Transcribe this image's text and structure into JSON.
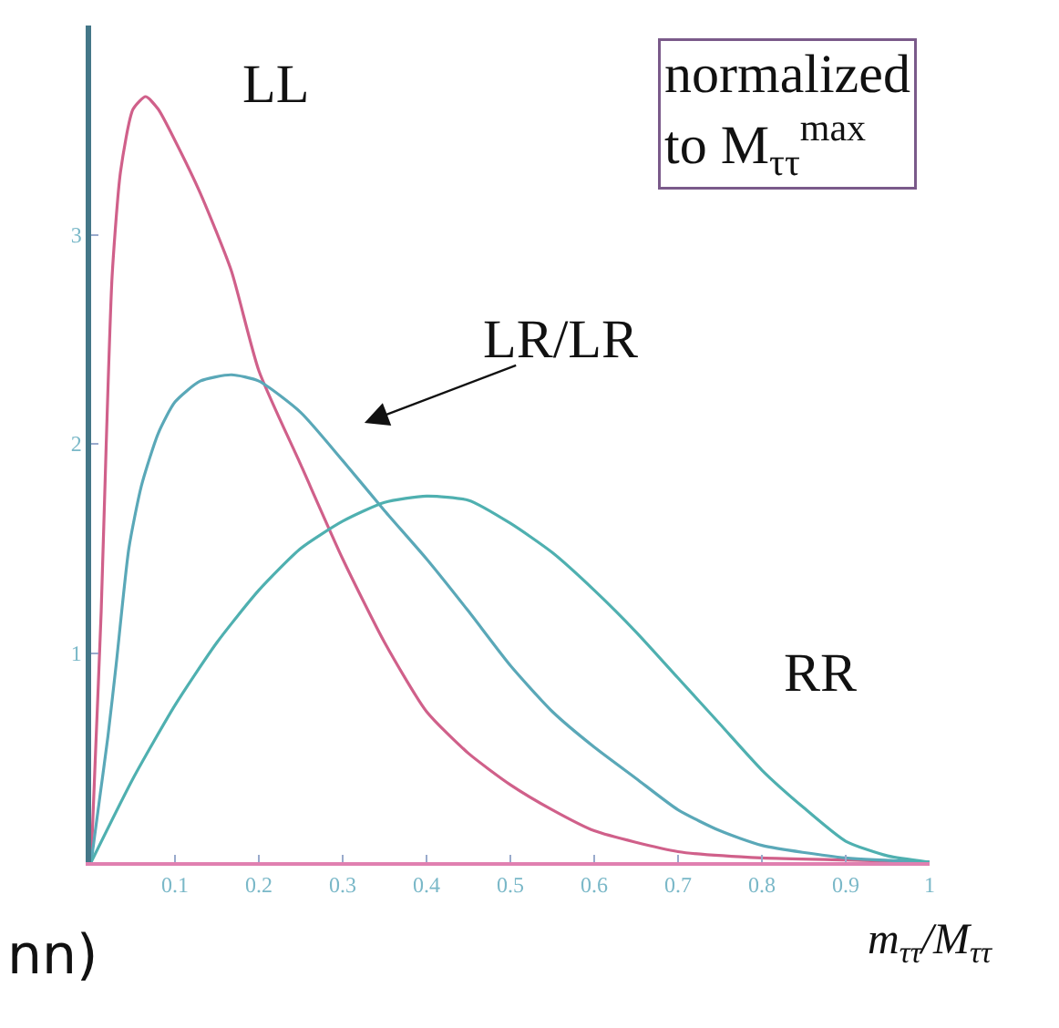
{
  "chart_data": {
    "type": "line",
    "xlabel": "m$_{ττ}$/M$_{ττ}$",
    "annotations": [
      "normalized to M$_{ττ}$$^{max}$",
      "nn)"
    ],
    "xlim": [
      0,
      1
    ],
    "ylim": [
      0,
      4
    ],
    "xticks": [
      0.1,
      0.2,
      0.3,
      0.4,
      0.5,
      0.6,
      0.7,
      0.8,
      0.9,
      1
    ],
    "yticks": [
      1,
      2,
      3
    ],
    "legend": false,
    "marker": "none",
    "line_style": "solid",
    "series": [
      {
        "name": "LL",
        "color": "#d0608a",
        "x": [
          0,
          0.005,
          0.012,
          0.018,
          0.025,
          0.035,
          0.05,
          0.065,
          0.08,
          0.1,
          0.13,
          0.167,
          0.2,
          0.25,
          0.3,
          0.35,
          0.4,
          0.45,
          0.5,
          0.55,
          0.6,
          0.7,
          0.8,
          0.9,
          1
        ],
        "values": [
          0,
          0.5,
          1.2,
          2.0,
          2.8,
          3.3,
          3.6,
          3.66,
          3.6,
          3.45,
          3.2,
          2.83,
          2.35,
          1.9,
          1.45,
          1.05,
          0.72,
          0.52,
          0.37,
          0.25,
          0.15,
          0.05,
          0.02,
          0.01,
          0
        ]
      },
      {
        "name": "LR/LR",
        "color": "#5aa8b8",
        "x": [
          0,
          0.01,
          0.02,
          0.03,
          0.045,
          0.06,
          0.08,
          0.1,
          0.13,
          0.167,
          0.2,
          0.25,
          0.3,
          0.35,
          0.4,
          0.45,
          0.5,
          0.55,
          0.6,
          0.65,
          0.7,
          0.75,
          0.8,
          0.9,
          1
        ],
        "values": [
          0,
          0.3,
          0.6,
          0.95,
          1.5,
          1.8,
          2.05,
          2.2,
          2.3,
          2.33,
          2.3,
          2.15,
          1.92,
          1.68,
          1.45,
          1.2,
          0.94,
          0.72,
          0.55,
          0.4,
          0.25,
          0.15,
          0.08,
          0.02,
          0
        ]
      },
      {
        "name": "RR",
        "color": "#4fb0b0",
        "x": [
          0,
          0.05,
          0.1,
          0.15,
          0.2,
          0.25,
          0.3,
          0.35,
          0.4,
          0.45,
          0.5,
          0.55,
          0.6,
          0.65,
          0.7,
          0.75,
          0.8,
          0.85,
          0.9,
          0.95,
          1
        ],
        "values": [
          0,
          0.4,
          0.75,
          1.05,
          1.3,
          1.5,
          1.63,
          1.72,
          1.75,
          1.73,
          1.62,
          1.48,
          1.3,
          1.1,
          0.88,
          0.66,
          0.44,
          0.26,
          0.1,
          0.03,
          0
        ]
      }
    ]
  }
}
